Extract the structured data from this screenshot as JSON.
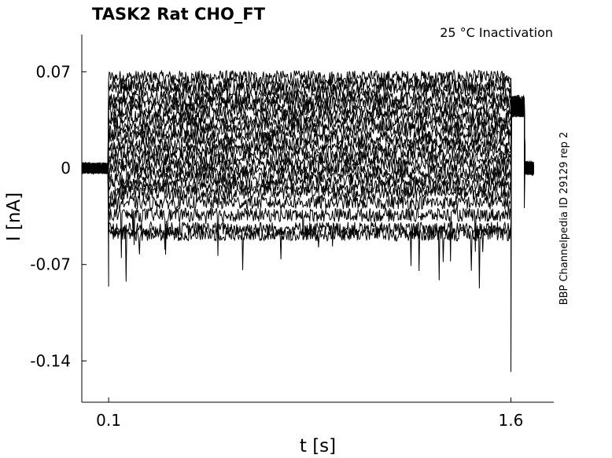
{
  "chart_data": {
    "type": "line",
    "title": "TASK2  Rat  CHO_FT",
    "annotation": "25 °C  Inactivation",
    "side_label": "BBP Channelpedia ID 29129 rep 2",
    "xlabel": "t [s]",
    "ylabel": "I [nA]",
    "xlim": [
      0.0,
      1.76
    ],
    "ylim": [
      -0.17,
      0.097
    ],
    "x_ticks": [
      0.1,
      1.6
    ],
    "x_tick_labels": [
      "0.1",
      "1.6"
    ],
    "y_ticks": [
      0.07,
      0,
      -0.07,
      -0.14
    ],
    "y_tick_labels": [
      "0.07",
      "0",
      "-0.07",
      "-0.14"
    ],
    "grid": false,
    "legend": "none",
    "line_color": "#000000",
    "protocol": {
      "baseline_level": 0.0,
      "step_start": 0.1,
      "step_end": 1.6,
      "tail_level": 0.045,
      "tail_end": 1.65,
      "onset_spike": -0.086,
      "offset_spike": -0.148,
      "tail_spike": -0.029
    },
    "series_levels": [
      0.066,
      0.061,
      0.057,
      0.051,
      0.047,
      0.042,
      0.037,
      0.032,
      0.027,
      0.022,
      0.017,
      0.012,
      0.007,
      0.002,
      -0.003,
      -0.008,
      -0.013,
      -0.018,
      -0.025,
      -0.034,
      -0.044,
      -0.048
    ]
  }
}
